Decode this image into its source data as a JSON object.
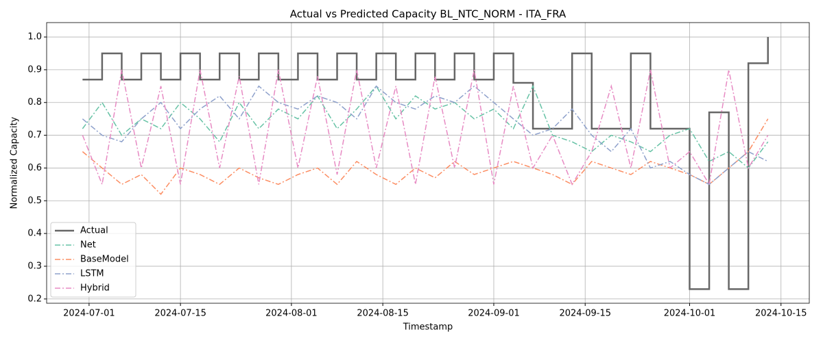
{
  "chart_data": {
    "type": "line",
    "title": "Actual vs Predicted Capacity BL_NTC_NORM - ITA_FRA",
    "x_label": "Timestamp",
    "y_label": "Normalized Capacity",
    "x": [
      "2024-06-30",
      "2024-07-03",
      "2024-07-06",
      "2024-07-09",
      "2024-07-12",
      "2024-07-15",
      "2024-07-18",
      "2024-07-21",
      "2024-07-24",
      "2024-07-27",
      "2024-07-30",
      "2024-08-02",
      "2024-08-05",
      "2024-08-08",
      "2024-08-11",
      "2024-08-14",
      "2024-08-17",
      "2024-08-20",
      "2024-08-23",
      "2024-08-26",
      "2024-08-29",
      "2024-09-01",
      "2024-09-04",
      "2024-09-07",
      "2024-09-10",
      "2024-09-13",
      "2024-09-16",
      "2024-09-19",
      "2024-09-22",
      "2024-09-25",
      "2024-09-28",
      "2024-10-01",
      "2024-10-04",
      "2024-10-07",
      "2024-10-10",
      "2024-10-13"
    ],
    "series": [
      {
        "name": "Actual",
        "color": "#666666",
        "dash": "solid",
        "drawstyle": "steps-post",
        "values": [
          0.87,
          0.95,
          0.87,
          0.95,
          0.87,
          0.95,
          0.87,
          0.95,
          0.87,
          0.95,
          0.87,
          0.95,
          0.87,
          0.95,
          0.87,
          0.95,
          0.87,
          0.95,
          0.87,
          0.95,
          0.87,
          0.95,
          0.86,
          0.72,
          0.72,
          0.95,
          0.72,
          0.72,
          0.95,
          0.72,
          0.72,
          0.23,
          0.77,
          0.23,
          0.92,
          1.0
        ]
      },
      {
        "name": "Net",
        "color": "#66c2a5",
        "dash": "dashdot",
        "drawstyle": "default",
        "values": [
          0.72,
          0.8,
          0.7,
          0.75,
          0.72,
          0.8,
          0.75,
          0.68,
          0.8,
          0.72,
          0.78,
          0.75,
          0.82,
          0.72,
          0.78,
          0.85,
          0.75,
          0.82,
          0.78,
          0.8,
          0.75,
          0.78,
          0.72,
          0.85,
          0.7,
          0.68,
          0.65,
          0.7,
          0.68,
          0.65,
          0.7,
          0.72,
          0.62,
          0.65,
          0.6,
          0.68
        ]
      },
      {
        "name": "BaseModel",
        "color": "#fc8d62",
        "dash": "dashdot",
        "drawstyle": "default",
        "values": [
          0.65,
          0.6,
          0.55,
          0.58,
          0.52,
          0.6,
          0.58,
          0.55,
          0.6,
          0.57,
          0.55,
          0.58,
          0.6,
          0.55,
          0.62,
          0.58,
          0.55,
          0.6,
          0.57,
          0.62,
          0.58,
          0.6,
          0.62,
          0.6,
          0.58,
          0.55,
          0.62,
          0.6,
          0.58,
          0.62,
          0.6,
          0.58,
          0.55,
          0.6,
          0.65,
          0.75
        ]
      },
      {
        "name": "LSTM",
        "color": "#8da0cb",
        "dash": "dashdot",
        "drawstyle": "default",
        "values": [
          0.75,
          0.7,
          0.68,
          0.75,
          0.8,
          0.72,
          0.78,
          0.82,
          0.75,
          0.85,
          0.8,
          0.78,
          0.82,
          0.8,
          0.75,
          0.85,
          0.8,
          0.78,
          0.82,
          0.8,
          0.85,
          0.8,
          0.75,
          0.7,
          0.72,
          0.78,
          0.7,
          0.65,
          0.72,
          0.6,
          0.62,
          0.58,
          0.55,
          0.6,
          0.65,
          0.62
        ]
      },
      {
        "name": "Hybrid",
        "color": "#e78ac3",
        "dash": "dashdot",
        "drawstyle": "default",
        "values": [
          0.7,
          0.55,
          0.9,
          0.6,
          0.85,
          0.55,
          0.9,
          0.6,
          0.88,
          0.55,
          0.9,
          0.6,
          0.88,
          0.58,
          0.9,
          0.6,
          0.85,
          0.55,
          0.88,
          0.6,
          0.9,
          0.55,
          0.85,
          0.6,
          0.7,
          0.55,
          0.65,
          0.85,
          0.6,
          0.9,
          0.6,
          0.65,
          0.55,
          0.9,
          0.6,
          0.7
        ]
      }
    ],
    "xlim": [
      "2024-06-24T12:00:00Z",
      "2024-10-19T08:00:00Z"
    ],
    "xticks": [
      "2024-07-01",
      "2024-07-15",
      "2024-08-01",
      "2024-08-15",
      "2024-09-01",
      "2024-09-15",
      "2024-10-01",
      "2024-10-15"
    ],
    "ylim": [
      0.187,
      1.044
    ],
    "yticks": [
      0.2,
      0.3,
      0.4,
      0.5,
      0.6,
      0.7,
      0.8,
      0.9,
      {
        "value": 1,
        "label": "1.0"
      }
    ],
    "grid": true,
    "legend": "lower left"
  }
}
